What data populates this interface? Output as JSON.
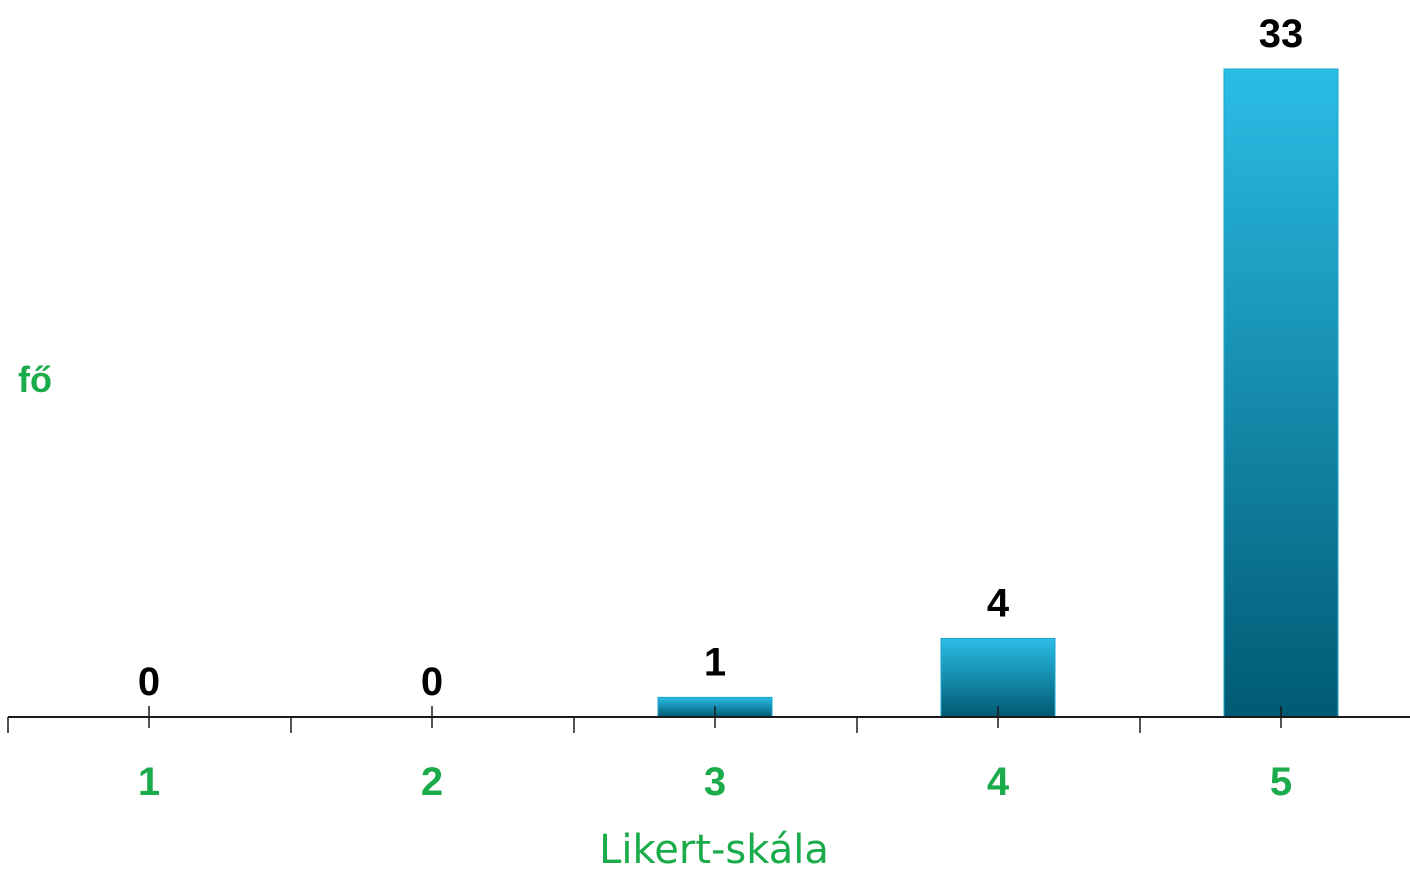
{
  "chart_data": {
    "type": "bar",
    "categories": [
      "1",
      "2",
      "3",
      "4",
      "5"
    ],
    "values": [
      0,
      0,
      1,
      4,
      33
    ],
    "data_labels": [
      "0",
      "0",
      "1",
      "4",
      "33"
    ],
    "xlabel": "Likert-skála",
    "ylabel": "fő",
    "ylim": [
      0,
      33
    ],
    "grid": false,
    "legend": "none"
  },
  "colors": {
    "label_green": "#1aab4a",
    "bar_top": "#2bbde6",
    "bar_bottom": "#005a73",
    "axis": "#1a1a1a"
  }
}
